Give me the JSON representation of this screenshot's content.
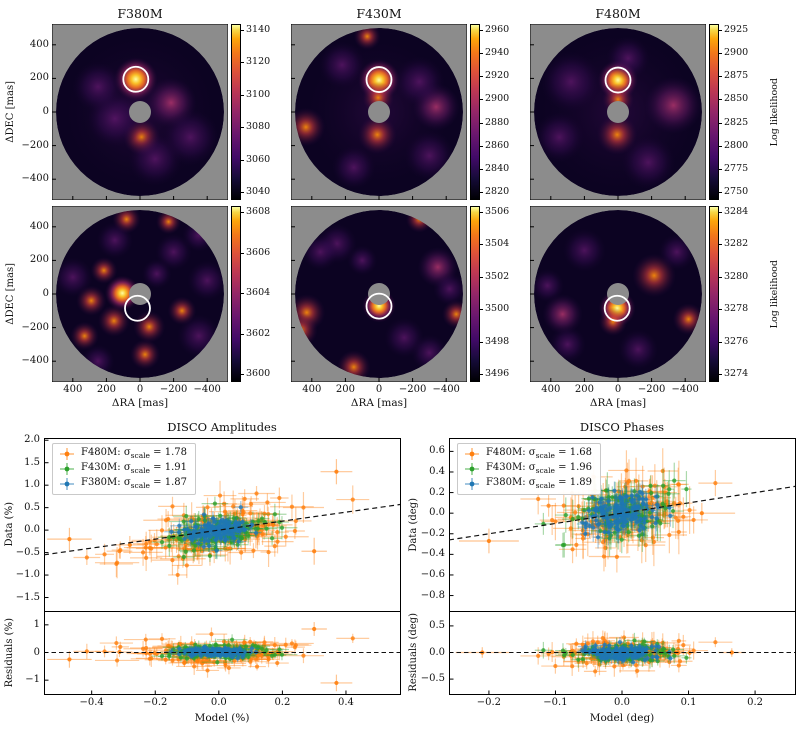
{
  "likelihood_maps": {
    "ylabel": "ΔDEC [mas]",
    "xlabel": "ΔRA [mas]",
    "colorbar_label": "Log likelihood",
    "y_ticks": [
      "400",
      "200",
      "0",
      "−200",
      "−400"
    ],
    "x_ticks": [
      "400",
      "200",
      "0",
      "−200",
      "−400"
    ],
    "tick_values": [
      400,
      200,
      0,
      -200,
      -400
    ],
    "rows": [
      {
        "show_titles": true,
        "show_x_ticks": false,
        "panels": [
          {
            "title": "F380M",
            "cbar_ticks": [
              "3140",
              "3120",
              "3100",
              "3080",
              "3060",
              "3040"
            ],
            "marker": {
              "ra": 25,
              "dec": 195
            },
            "blobs": [
              [
                "f",
                0,
                0,
                480
              ],
              [
                "b",
                25,
                195,
                130
              ],
              [
                "w",
                -10,
                -150,
                110
              ],
              [
                "p2",
                -185,
                55,
                150
              ],
              [
                "pu",
                150,
                -40,
                170
              ],
              [
                "pu",
                -90,
                -280,
                160
              ],
              [
                "pu",
                250,
                150,
                150
              ],
              [
                "pu",
                -300,
                -150,
                170
              ]
            ]
          },
          {
            "title": "F430M",
            "cbar_ticks": [
              "2960",
              "2940",
              "2920",
              "2900",
              "2880",
              "2860",
              "2840",
              "2820"
            ],
            "marker": {
              "ra": 0,
              "dec": 193
            },
            "blobs": [
              [
                "f",
                0,
                0,
                460
              ],
              [
                "b",
                0,
                190,
                125
              ],
              [
                "w",
                5,
                85,
                95
              ],
              [
                "w",
                10,
                -135,
                115
              ],
              [
                "w",
                435,
                -90,
                115
              ],
              [
                "p2",
                -340,
                30,
                140
              ],
              [
                "pu",
                -240,
                180,
                150
              ],
              [
                "pu",
                220,
                280,
                140
              ],
              [
                "pu",
                -300,
                -260,
                150
              ],
              [
                "pu",
                150,
                -330,
                130
              ],
              [
                "w",
                70,
                450,
                80
              ]
            ]
          },
          {
            "title": "F480M",
            "cbar_ticks": [
              "2925",
              "2900",
              "2875",
              "2850",
              "2825",
              "2800",
              "2775",
              "2750"
            ],
            "marker": {
              "ra": 0,
              "dec": 190
            },
            "has_cbar_label": true,
            "blobs": [
              [
                "f",
                0,
                0,
                500
              ],
              [
                "b",
                0,
                190,
                120
              ],
              [
                "w",
                0,
                75,
                95
              ],
              [
                "w",
                5,
                -135,
                120
              ],
              [
                "p2",
                -330,
                40,
                170
              ],
              [
                "pu",
                280,
                180,
                180
              ],
              [
                "pu",
                -180,
                -300,
                160
              ],
              [
                "pu",
                350,
                -150,
                150
              ],
              [
                "pu",
                -60,
                320,
                130
              ]
            ]
          }
        ]
      },
      {
        "show_titles": false,
        "show_x_ticks": true,
        "panels": [
          {
            "cbar_ticks": [
              "3608",
              "3606",
              "3604",
              "3602",
              "3600"
            ],
            "marker": {
              "ra": 15,
              "dec": -85
            },
            "blobs": [
              [
                "b",
                105,
                5,
                105
              ],
              [
                "w",
                290,
                -40,
                90
              ],
              [
                "w",
                155,
                -160,
                95
              ],
              [
                "w",
                -55,
                -195,
                95
              ],
              [
                "w",
                80,
                445,
                85
              ],
              [
                "w",
                -250,
                -100,
                85
              ],
              [
                "w",
                215,
                140,
                80
              ],
              [
                "w",
                -30,
                -360,
                90
              ],
              [
                "w",
                -170,
                430,
                75
              ],
              [
                "w",
                330,
                -250,
                85
              ],
              [
                "pu",
                400,
                100,
                120
              ],
              [
                "pu",
                -350,
                -250,
                130
              ],
              [
                "pu",
                -400,
                80,
                120
              ],
              [
                "pu",
                150,
                320,
                110
              ],
              [
                "pu",
                -200,
                250,
                110
              ],
              [
                "pu",
                -350,
                350,
                100
              ],
              [
                "pu",
                250,
                -400,
                100
              ],
              [
                "pu",
                -100,
                120,
                90
              ]
            ]
          },
          {
            "cbar_ticks": [
              "3506",
              "3504",
              "3502",
              "3500",
              "3498",
              "3496"
            ],
            "marker": {
              "ra": 0,
              "dec": -72
            },
            "blobs": [
              [
                "b",
                0,
                -70,
                100
              ],
              [
                "w",
                430,
                -110,
                110
              ],
              [
                "w",
                465,
                -215,
                100
              ],
              [
                "w",
                150,
                -435,
                100
              ],
              [
                "w",
                -240,
                445,
                80
              ],
              [
                "w",
                -460,
                -120,
                85
              ],
              [
                "p2",
                -350,
                160,
                120
              ],
              [
                "pu",
                250,
                300,
                120
              ],
              [
                "pu",
                -150,
                -260,
                120
              ],
              [
                "pu",
                350,
                250,
                110
              ],
              [
                "pu",
                -300,
                -350,
                110
              ],
              [
                "pu",
                100,
                200,
                90
              ],
              [
                "pu",
                -420,
                30,
                100
              ]
            ]
          },
          {
            "cbar_ticks": [
              "3284",
              "3282",
              "3280",
              "3278",
              "3276",
              "3274"
            ],
            "marker": {
              "ra": 5,
              "dec": -85
            },
            "has_cbar_label": true,
            "blobs": [
              [
                "b",
                5,
                -85,
                110
              ],
              [
                "w",
                30,
                -165,
                85
              ],
              [
                "w",
                -215,
                110,
                130
              ],
              [
                "w",
                -420,
                -150,
                95
              ],
              [
                "p2",
                330,
                -120,
                120
              ],
              [
                "pu",
                200,
                260,
                130
              ],
              [
                "pu",
                -120,
                -330,
                120
              ],
              [
                "pu",
                300,
                -300,
                110
              ],
              [
                "pu",
                -350,
                250,
                110
              ],
              [
                "pu",
                420,
                50,
                100
              ]
            ]
          }
        ]
      }
    ]
  },
  "legend_format": {
    "sep": ": ",
    "symbol": "σ",
    "sub": "scale",
    "eq": " = "
  },
  "chart_data": [
    {
      "type": "scatter",
      "title": "DISCO Amplitudes",
      "xlabel": "Model (%)",
      "data_ylabel": "Data (%)",
      "residuals_ylabel": "Residuals (%)",
      "xlim": [
        -0.55,
        0.57
      ],
      "data_ylim": [
        -1.8,
        2.05
      ],
      "residual_ylim": [
        -1.5,
        1.5
      ],
      "x_ticks": [
        {
          "label": "−0.4",
          "v": -0.4
        },
        {
          "label": "−0.2",
          "v": -0.2
        },
        {
          "label": "0.0",
          "v": 0
        },
        {
          "label": "0.2",
          "v": 0.2
        },
        {
          "label": "0.4",
          "v": 0.4
        }
      ],
      "data_y_ticks": [
        {
          "label": "2.0",
          "v": 2.0
        },
        {
          "label": "1.5",
          "v": 1.5
        },
        {
          "label": "1.0",
          "v": 1.0
        },
        {
          "label": "0.5",
          "v": 0.5
        },
        {
          "label": "0.0",
          "v": 0.0
        },
        {
          "label": "−0.5",
          "v": -0.5
        },
        {
          "label": "−1.0",
          "v": -1.0
        },
        {
          "label": "−1.5",
          "v": -1.5
        }
      ],
      "residual_y_ticks": [
        {
          "label": "1",
          "v": 1
        },
        {
          "label": "0",
          "v": 0
        },
        {
          "label": "−1",
          "v": -1
        }
      ],
      "legend": [
        {
          "name": "F480M",
          "sigma": "1.78",
          "color": "#ff7f0e"
        },
        {
          "name": "F430M",
          "sigma": "1.91",
          "color": "#2ca02c"
        },
        {
          "name": "F380M",
          "sigma": "1.87",
          "color": "#1f77b4"
        }
      ],
      "line_slope": 1,
      "series": [
        {
          "name": "F480M",
          "color": "#ff7f0e",
          "n": 150,
          "x_sd": 0.135,
          "y_sd": 0.3,
          "yerr": 0.26,
          "xerr": 0.05,
          "res_sd": 0.24,
          "seed": 101
        },
        {
          "name": "F430M",
          "color": "#2ca02c",
          "n": 115,
          "x_sd": 0.085,
          "y_sd": 0.2,
          "yerr": 0.19,
          "xerr": 0.035,
          "res_sd": 0.15,
          "seed": 202
        },
        {
          "name": "F380M",
          "color": "#1f77b4",
          "n": 140,
          "x_sd": 0.055,
          "y_sd": 0.13,
          "yerr": 0.14,
          "xerr": 0.02,
          "res_sd": 0.08,
          "seed": 303
        }
      ],
      "outliers_main": [
        {
          "x": 0.37,
          "y": 1.3,
          "xe": 0.05,
          "ye": 0.28
        },
        {
          "x": -0.47,
          "y": -0.2,
          "xe": 0.07,
          "ye": 0.25
        },
        {
          "x": 0.3,
          "y": -0.47,
          "xe": 0.04,
          "ye": 0.3
        },
        {
          "x": -0.28,
          "y": -0.33,
          "xe": 0.05,
          "ye": 0.2
        }
      ],
      "outliers_res": [
        {
          "x": 0.3,
          "y": 0.85,
          "xe": 0.04,
          "ye": 0.25
        },
        {
          "x": 0.37,
          "y": -1.1,
          "xe": 0.05,
          "ye": 0.3
        },
        {
          "x": -0.47,
          "y": -0.25,
          "xe": 0.07,
          "ye": 0.3
        }
      ]
    },
    {
      "type": "scatter",
      "title": "DISCO Phases",
      "xlabel": "Model (deg)",
      "data_ylabel": "Data (deg)",
      "residuals_ylabel": "Residuals (deg)",
      "xlim": [
        -0.26,
        0.26
      ],
      "data_ylim": [
        -0.95,
        0.73
      ],
      "residual_ylim": [
        -0.78,
        0.78
      ],
      "x_ticks": [
        {
          "label": "−0.2",
          "v": -0.2
        },
        {
          "label": "−0.1",
          "v": -0.1
        },
        {
          "label": "0.0",
          "v": 0
        },
        {
          "label": "0.1",
          "v": 0.1
        },
        {
          "label": "0.2",
          "v": 0.2
        }
      ],
      "data_y_ticks": [
        {
          "label": "0.6",
          "v": 0.6
        },
        {
          "label": "0.4",
          "v": 0.4
        },
        {
          "label": "0.2",
          "v": 0.2
        },
        {
          "label": "0.0",
          "v": 0.0
        },
        {
          "label": "−0.2",
          "v": -0.2
        },
        {
          "label": "−0.4",
          "v": -0.4
        },
        {
          "label": "−0.6",
          "v": -0.6
        },
        {
          "label": "−0.8",
          "v": -0.8
        }
      ],
      "residual_y_ticks": [
        {
          "label": "0.5",
          "v": 0.5
        },
        {
          "label": "0.0",
          "v": 0
        },
        {
          "label": "−0.5",
          "v": -0.5
        }
      ],
      "legend": [
        {
          "name": "F480M",
          "sigma": "1.68",
          "color": "#ff7f0e"
        },
        {
          "name": "F430M",
          "sigma": "1.96",
          "color": "#2ca02c"
        },
        {
          "name": "F380M",
          "sigma": "1.89",
          "color": "#1f77b4"
        }
      ],
      "line_slope": 1,
      "series": [
        {
          "name": "F480M",
          "color": "#ff7f0e",
          "n": 150,
          "x_sd": 0.055,
          "y_sd": 0.17,
          "yerr": 0.17,
          "xerr": 0.02,
          "res_sd": 0.12,
          "seed": 404
        },
        {
          "name": "F430M",
          "color": "#2ca02c",
          "n": 115,
          "x_sd": 0.04,
          "y_sd": 0.13,
          "yerr": 0.14,
          "xerr": 0.012,
          "res_sd": 0.09,
          "seed": 505
        },
        {
          "name": "F380M",
          "color": "#1f77b4",
          "n": 140,
          "x_sd": 0.028,
          "y_sd": 0.09,
          "yerr": 0.1,
          "xerr": 0.008,
          "res_sd": 0.06,
          "seed": 606
        }
      ],
      "outliers_main": [
        {
          "x": -0.2,
          "y": -0.27,
          "xe": 0.045,
          "ye": 0.12
        },
        {
          "x": 0.12,
          "y": 0.0,
          "xe": 0.05,
          "ye": 0.1
        }
      ],
      "outliers_res": [
        {
          "x": -0.21,
          "y": 0.0,
          "xe": 0.04,
          "ye": 0.1
        },
        {
          "x": 0.165,
          "y": 0.0,
          "xe": 0.02,
          "ye": 0.08
        }
      ]
    }
  ]
}
